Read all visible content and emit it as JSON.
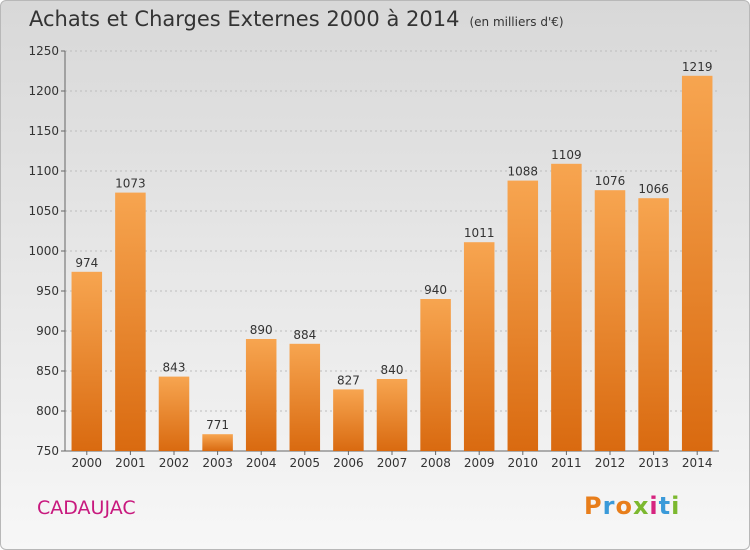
{
  "header": {
    "title": "Achats et Charges Externes 2000 à 2014",
    "subtitle": "(en milliers d'€)"
  },
  "footer": {
    "city": "CADAUJAC",
    "logo_text": "Proxiti"
  },
  "colors": {
    "bar_top": "#f7a550",
    "bar_bottom": "#d96a10",
    "city": "#c8197e"
  },
  "chart_data": {
    "type": "bar",
    "title": "Achats et Charges Externes 2000 à 2014",
    "subtitle": "(en milliers d'€)",
    "categories": [
      "2000",
      "2001",
      "2002",
      "2003",
      "2004",
      "2005",
      "2006",
      "2007",
      "2008",
      "2009",
      "2010",
      "2011",
      "2012",
      "2013",
      "2014"
    ],
    "values": [
      974,
      1073,
      843,
      771,
      890,
      884,
      827,
      840,
      940,
      1011,
      1088,
      1109,
      1076,
      1066,
      1219
    ],
    "ylim": [
      750,
      1250
    ],
    "yticks": [
      750,
      800,
      850,
      900,
      950,
      1000,
      1050,
      1100,
      1150,
      1200,
      1250
    ],
    "grid": true,
    "data_labels": true
  }
}
